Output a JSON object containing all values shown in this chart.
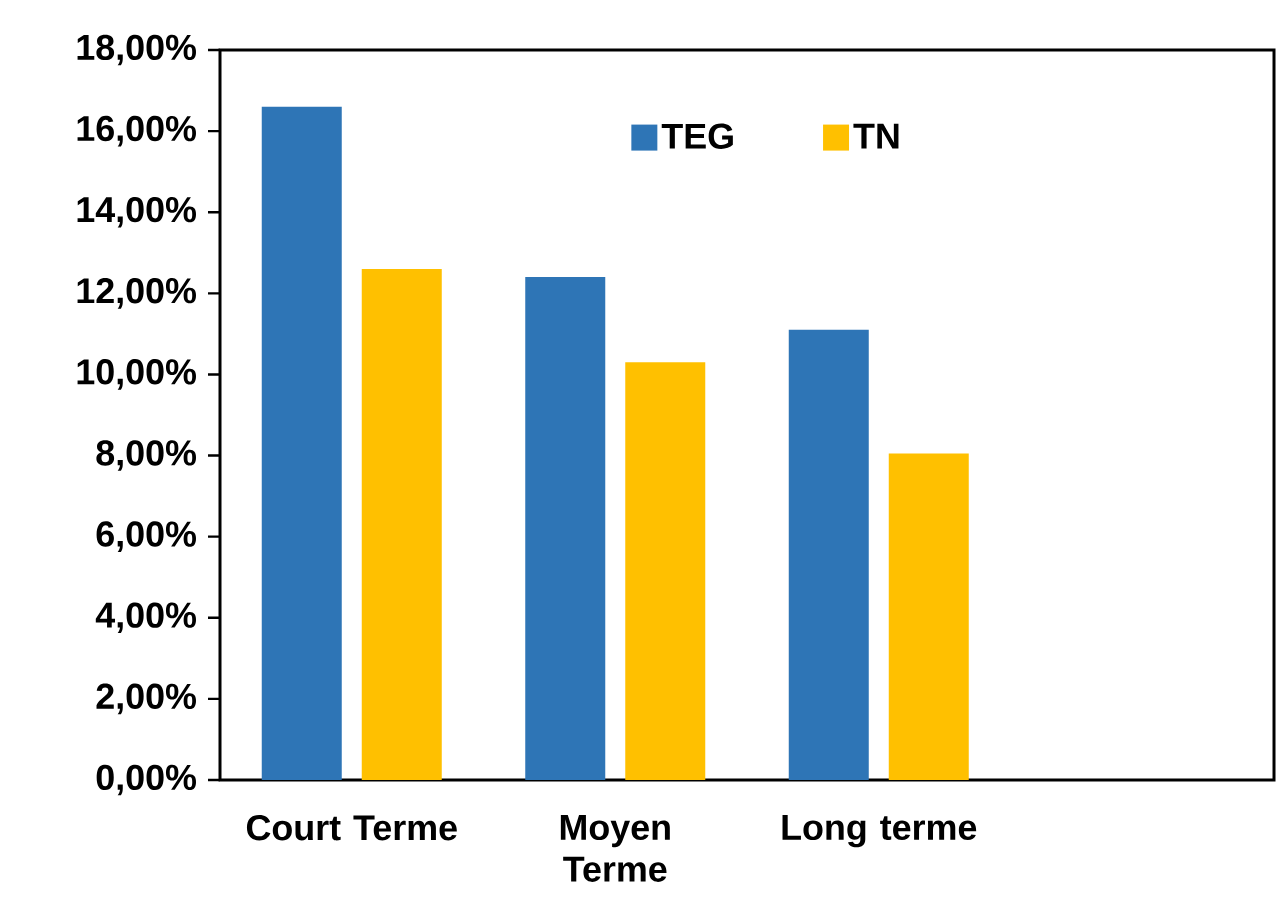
{
  "chart_data": {
    "type": "bar",
    "categories": [
      "Court Terme",
      "Moyen Terme",
      "Long terme",
      null
    ],
    "series": [
      {
        "name": "TEG",
        "color": "#2e75b6",
        "values": [
          16.6,
          12.4,
          11.1,
          null
        ]
      },
      {
        "name": "TN",
        "color": "#ffc000",
        "values": [
          12.6,
          10.3,
          8.05,
          null
        ]
      }
    ],
    "ylim": [
      0,
      18
    ],
    "yticks": [
      {
        "value": 0,
        "label": "0,00%"
      },
      {
        "value": 2,
        "label": "2,00%"
      },
      {
        "value": 4,
        "label": "4,00%"
      },
      {
        "value": 6,
        "label": "6,00%"
      },
      {
        "value": 8,
        "label": "8,00%"
      },
      {
        "value": 10,
        "label": "10,00%"
      },
      {
        "value": 12,
        "label": "12,00%"
      },
      {
        "value": 14,
        "label": "14,00%"
      },
      {
        "value": 16,
        "label": "16,00%"
      },
      {
        "value": 18,
        "label": "18,00%"
      }
    ],
    "legend": "top"
  }
}
